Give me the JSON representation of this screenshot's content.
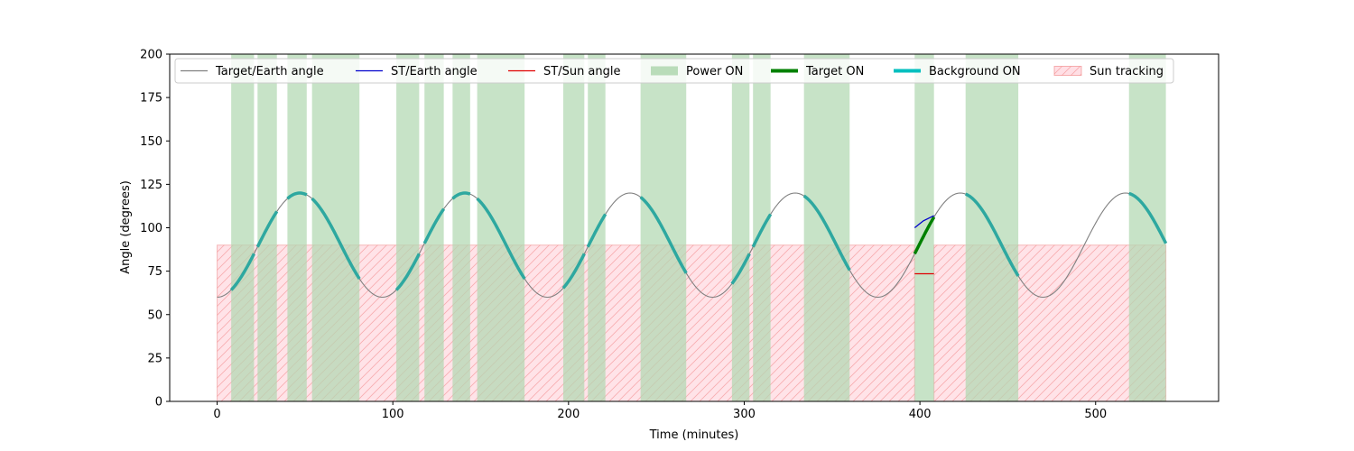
{
  "chart_data": {
    "type": "line",
    "title": "",
    "xlabel": "Time (minutes)",
    "ylabel": "Angle (degrees)",
    "xlim": [
      -27,
      570
    ],
    "ylim": [
      0,
      200
    ],
    "xticks": [
      0,
      100,
      200,
      300,
      400,
      500
    ],
    "yticks": [
      0,
      25,
      50,
      75,
      100,
      125,
      150,
      175,
      200
    ],
    "grid": false,
    "legend_position": "top",
    "legend": [
      {
        "label": "Target/Earth angle",
        "kind": "line",
        "color": "#808080"
      },
      {
        "label": "ST/Earth angle",
        "kind": "line",
        "color": "#0000cc"
      },
      {
        "label": "ST/Sun angle",
        "kind": "line",
        "color": "#e00000"
      },
      {
        "label": "Power ON",
        "kind": "patch",
        "color": "#b2d8b2"
      },
      {
        "label": "Target ON",
        "kind": "thickline",
        "color": "#008000"
      },
      {
        "label": "Background ON",
        "kind": "thickline",
        "color": "#00bfbf"
      },
      {
        "label": "Sun tracking",
        "kind": "hatch",
        "color": "#ffc0cb"
      }
    ],
    "target_earth_angle": {
      "formula": "90 - 30*cos(2*pi*t/94)",
      "period_minutes": 94,
      "mean": 90,
      "amplitude": 30,
      "t_start": 0,
      "t_end": 540
    },
    "power_on_intervals": [
      [
        8,
        21
      ],
      [
        23,
        34
      ],
      [
        40,
        51
      ],
      [
        54,
        81
      ],
      [
        102,
        115
      ],
      [
        118,
        129
      ],
      [
        134,
        144
      ],
      [
        148,
        175
      ],
      [
        197,
        209
      ],
      [
        211,
        221
      ],
      [
        241,
        267
      ],
      [
        293,
        303
      ],
      [
        305,
        315
      ],
      [
        334,
        360
      ],
      [
        397,
        408
      ],
      [
        426,
        456
      ],
      [
        519,
        540
      ]
    ],
    "background_on_intervals": [
      [
        8,
        21
      ],
      [
        23,
        34
      ],
      [
        40,
        51
      ],
      [
        54,
        81
      ],
      [
        102,
        115
      ],
      [
        118,
        129
      ],
      [
        134,
        144
      ],
      [
        148,
        175
      ],
      [
        197,
        209
      ],
      [
        211,
        221
      ],
      [
        241,
        267
      ],
      [
        293,
        303
      ],
      [
        305,
        315
      ],
      [
        334,
        360
      ],
      [
        426,
        456
      ],
      [
        519,
        540
      ]
    ],
    "target_on_interval": [
      [
        397,
        408
      ]
    ],
    "st_earth_angle": [
      [
        397,
        100
      ],
      [
        402,
        104
      ],
      [
        408,
        107
      ]
    ],
    "st_sun_angle": [
      [
        397,
        73.5
      ],
      [
        408,
        73.5
      ]
    ],
    "sun_tracking_intervals": [
      [
        0,
        397,
        90
      ],
      [
        408,
        540,
        90
      ]
    ],
    "colors": {
      "power_on": "#b2d8b2",
      "target_line": "#808080",
      "background_on": "#2ea8a0",
      "target_on": "#008000",
      "st_earth": "#0000cc",
      "st_sun": "#e00000",
      "sun_tracking_fill": "#ffc0cb",
      "sun_tracking_hatch": "#f08080"
    }
  }
}
